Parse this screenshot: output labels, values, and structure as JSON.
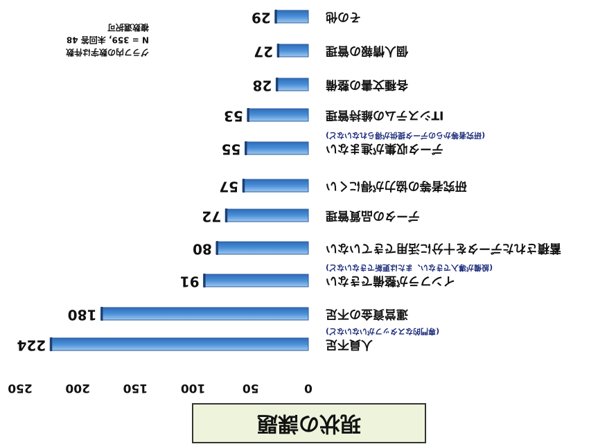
{
  "chart_data": {
    "type": "bar",
    "orientation": "horizontal",
    "title": "現状の課題",
    "categories": [
      "人員不足",
      "運営資金の不足",
      "インフラが整備できない",
      "蓄積されたデータを十分に活用できていない",
      "データの品質管理",
      "研究者等の協力が得にくい",
      "データ収集が進まない",
      "ITシステムの維持管理",
      "各種文書の整備",
      "個人情報の管理",
      "その他"
    ],
    "category_notes": [
      "(専門的なスタッフがいないなど)",
      null,
      "(設備が導入できない、または更新できないなど)",
      null,
      null,
      null,
      "(研究者等からのデータ提供が得られないなど)",
      null,
      null,
      null,
      null
    ],
    "values": [
      224,
      180,
      91,
      80,
      72,
      57,
      55,
      53,
      28,
      27,
      29
    ],
    "color": "#4a8fd8",
    "xlim": [
      0,
      250
    ],
    "xticks": [
      0,
      50,
      100,
      150,
      200,
      250
    ],
    "note": [
      "グラフ内の数字は件数",
      "N = 359, 未回答 48",
      "複数選択可"
    ],
    "rotated": true
  }
}
